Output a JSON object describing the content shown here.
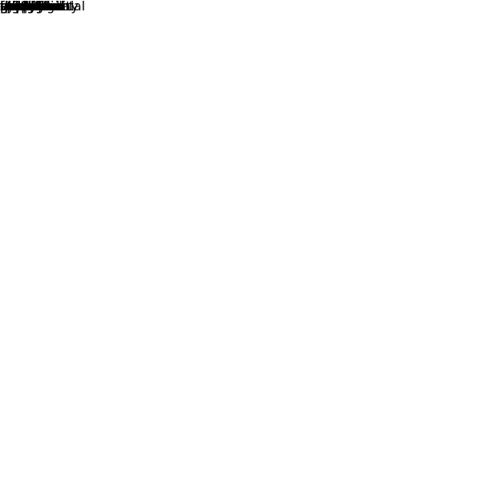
{
  "words": [
    {
      "text": "esophageal",
      "color": "#dd0033"
    },
    {
      "text": "speech",
      "color": "#ee0022"
    },
    {
      "text": "algorithm",
      "color": "#ee0022"
    },
    {
      "text": "dilation",
      "color": "#bb0044"
    },
    {
      "text": "excitation",
      "color": "#cc0044"
    },
    {
      "text": "conversion",
      "color": "#aa0055"
    },
    {
      "text": "phase",
      "color": "#ee0022"
    },
    {
      "text": "time",
      "color": "#aa0055"
    },
    {
      "text": "mixture",
      "color": "#880077"
    },
    {
      "text": "gaussian",
      "color": "#880077"
    },
    {
      "text": "model",
      "color": "#880077"
    },
    {
      "text": "voice",
      "color": "#bb0055"
    },
    {
      "text": "using",
      "color": "#770088"
    },
    {
      "text": "neural",
      "color": "#880077"
    },
    {
      "text": "network",
      "color": "#770088"
    },
    {
      "text": "tract",
      "color": "#660099"
    },
    {
      "text": "converted",
      "color": "#660099"
    },
    {
      "text": "deep",
      "color": "#aa0055"
    },
    {
      "text": "intelligibility",
      "color": "#2200cc"
    },
    {
      "text": "system",
      "color": "#2200cc"
    },
    {
      "text": "reduction",
      "color": "#5500aa"
    },
    {
      "text": "vocal",
      "color": "#5500aa"
    },
    {
      "text": "noise",
      "color": "#770088"
    },
    {
      "text": "order",
      "color": "#4400bb"
    },
    {
      "text": "quality",
      "color": "#4400bb"
    },
    {
      "text": "paper",
      "color": "#2200cc"
    },
    {
      "text": "frames",
      "color": "#5500aa"
    },
    {
      "text": "experimental",
      "color": "#4400bb"
    },
    {
      "text": "this",
      "color": "#1100dd"
    },
    {
      "text": "proposed",
      "color": "#1100dd"
    },
    {
      "text": "used",
      "color": "#1100dd"
    },
    {
      "text": "source",
      "color": "#1100dd"
    },
    {
      "text": "been",
      "color": "#3300bb"
    },
    {
      "text": "evaluate",
      "color": "#00aa55"
    },
    {
      "text": "vector",
      "color": "#00cc22"
    },
    {
      "text": "selection",
      "color": "#009966"
    },
    {
      "text": "study",
      "color": "#00aa55"
    },
    {
      "text": "gmm",
      "color": "#00cc22"
    },
    {
      "text": "then",
      "color": "#009966"
    },
    {
      "text": "them",
      "color": "#006699"
    },
    {
      "text": "nonlinear",
      "color": "#0044bb"
    },
    {
      "text": "dnn",
      "color": "#006699"
    },
    {
      "text": "measures",
      "color": "#0033cc"
    },
    {
      "text": "mapping",
      "color": "#0044bb"
    },
    {
      "text": "reduce",
      "color": "#0044bb"
    },
    {
      "text": "dilated",
      "color": "#0055aa"
    },
    {
      "text": "based",
      "color": "#0044bb"
    },
    {
      "text": "evaluated",
      "color": "#0033cc"
    },
    {
      "text": "objective",
      "color": "#0033cc"
    },
    {
      "text": "also",
      "color": "#0044bb"
    },
    {
      "text": "method",
      "color": "#005599"
    },
    {
      "text": "se",
      "color": "#006699"
    }
  ]
}
